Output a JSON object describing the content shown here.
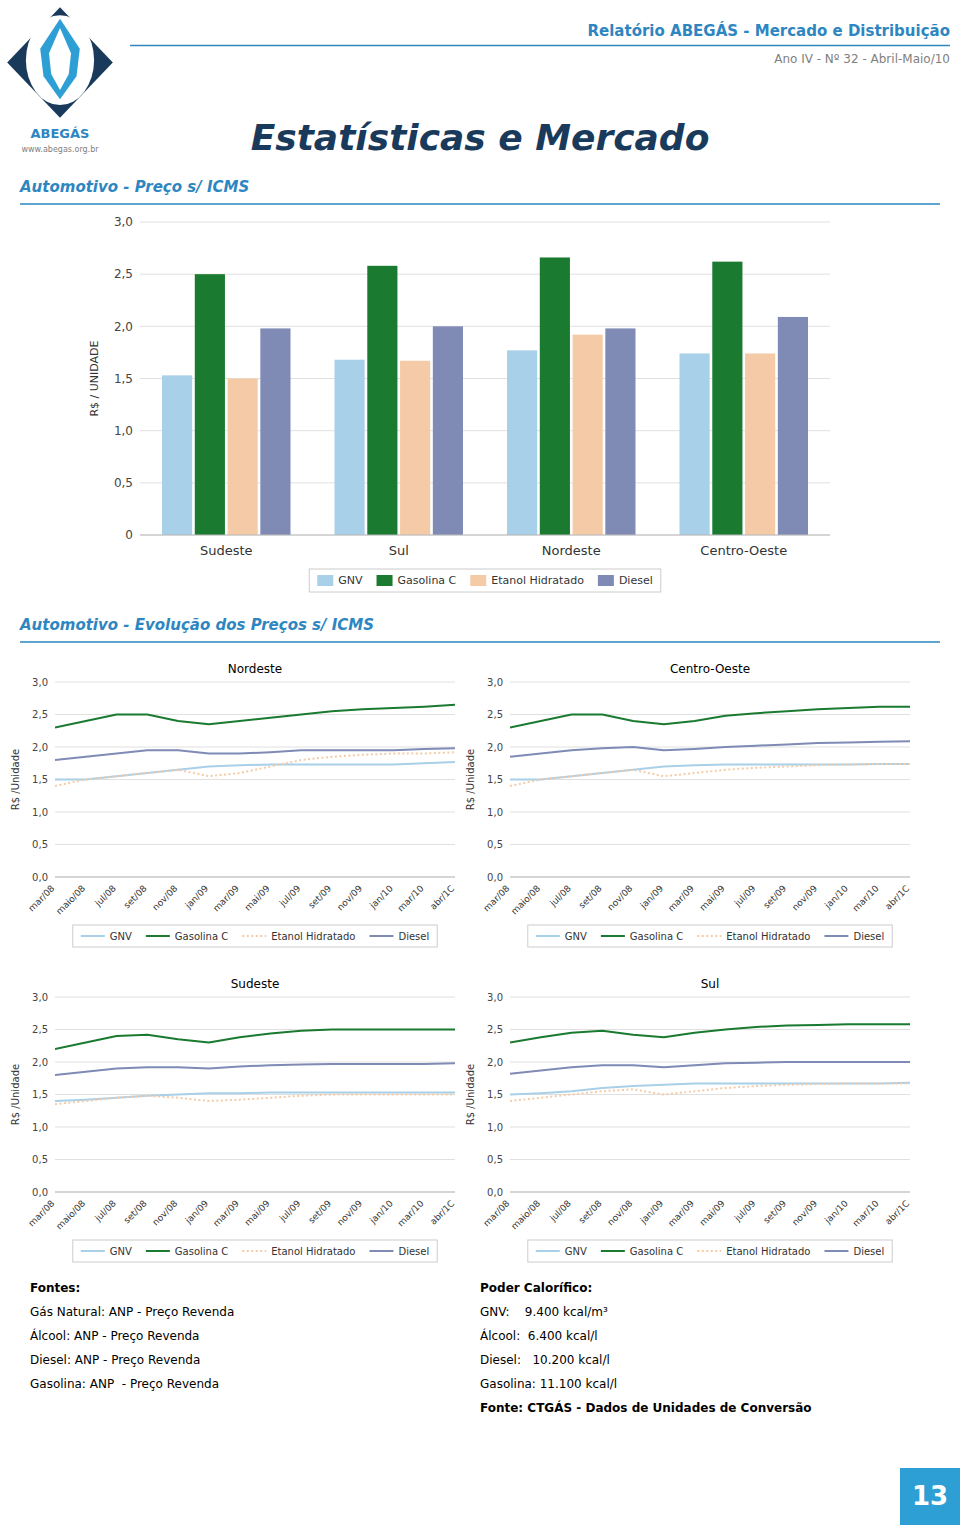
{
  "logo_text": "ABEGÁS",
  "logo_url": "www.abegas.org.br",
  "header_title": "Relatório ABEGÁS - Mercado e Distribuição",
  "header_subtitle": "Ano IV - Nº 32 - Abril-Maio/10",
  "page_title": "Estatísticas e Mercado",
  "sections": [
    "Automotivo - Preço s/ ICMS",
    "Automotivo - Evolução dos Preços s/ ICMS"
  ],
  "chart_data": [
    {
      "type": "bar",
      "categories": [
        "Sudeste",
        "Sul",
        "Nordeste",
        "Centro-Oeste"
      ],
      "series": [
        {
          "name": "GNV",
          "color": "#a8d0e8",
          "values": [
            1.53,
            1.68,
            1.77,
            1.74
          ]
        },
        {
          "name": "Gasolina C",
          "color": "#1a7a30",
          "values": [
            2.5,
            2.58,
            2.66,
            2.62
          ]
        },
        {
          "name": "Etanol Hidratado",
          "color": "#f5cba7",
          "values": [
            1.5,
            1.67,
            1.92,
            1.74
          ]
        },
        {
          "name": "Diesel",
          "color": "#7f8ab5",
          "values": [
            1.98,
            2.0,
            1.98,
            2.09
          ]
        }
      ],
      "ylim": [
        0,
        3
      ],
      "yticks": [
        0,
        {
          "value": 0.5,
          "label": "0,5"
        },
        {
          "value": 1.0,
          "label": "1,0"
        },
        {
          "value": 1.5,
          "label": "1,5"
        },
        {
          "value": 2.0,
          "label": "2,0"
        },
        {
          "value": 2.5,
          "label": "2,5"
        },
        {
          "value": 3.0,
          "label": "3,0"
        }
      ],
      "ylabel": "R$ / UNIDADE",
      "grid": true,
      "legend": "bottom"
    },
    {
      "type": "line",
      "title": "Nordeste",
      "categories": [
        "mar/08",
        "maio/08",
        "jul/08",
        "set/08",
        "nov/08",
        "jan/09",
        "mar/09",
        "mai/09",
        "jul/09",
        "set/09",
        "nov/09",
        "jan/10",
        "mar/10",
        "abr/1C"
      ],
      "series": [
        {
          "name": "GNV",
          "color": "#a8d0e8",
          "line_style": "solid",
          "values": [
            1.5,
            1.5,
            1.55,
            1.6,
            1.65,
            1.7,
            1.72,
            1.73,
            1.73,
            1.73,
            1.73,
            1.73,
            1.75,
            1.77
          ]
        },
        {
          "name": "Gasolina C",
          "color": "#1a7a30",
          "line_style": "solid",
          "values": [
            2.3,
            2.4,
            2.5,
            2.5,
            2.4,
            2.35,
            2.4,
            2.45,
            2.5,
            2.55,
            2.58,
            2.6,
            2.62,
            2.65
          ]
        },
        {
          "name": "Etanol Hidratado",
          "color": "#f5cba7",
          "line_style": "dotted",
          "values": [
            1.4,
            1.5,
            1.55,
            1.6,
            1.65,
            1.55,
            1.6,
            1.7,
            1.8,
            1.85,
            1.88,
            1.9,
            1.9,
            1.92
          ]
        },
        {
          "name": "Diesel",
          "color": "#7f8ab5",
          "line_style": "solid",
          "values": [
            1.8,
            1.85,
            1.9,
            1.95,
            1.95,
            1.9,
            1.9,
            1.92,
            1.95,
            1.95,
            1.95,
            1.95,
            1.97,
            1.98
          ]
        }
      ],
      "ylim": [
        0.0,
        3.0
      ],
      "yticks": [
        {
          "value": 0.0,
          "label": "0,0"
        },
        {
          "value": 0.5,
          "label": "0,5"
        },
        {
          "value": 1.0,
          "label": "1,0"
        },
        {
          "value": 1.5,
          "label": "1,5"
        },
        {
          "value": 2.0,
          "label": "2,0"
        },
        {
          "value": 2.5,
          "label": "2,5"
        },
        {
          "value": 3.0,
          "label": "3,0"
        }
      ],
      "ylabel": "R$ /Unidade",
      "grid": true,
      "legend": "bottom"
    },
    {
      "type": "line",
      "title": "Centro-Oeste",
      "categories": [
        "mar/08",
        "maio/08",
        "jul/08",
        "set/08",
        "nov/08",
        "jan/09",
        "mar/09",
        "mai/09",
        "jul/09",
        "set/09",
        "nov/09",
        "jan/10",
        "mar/10",
        "abr/1C"
      ],
      "series": [
        {
          "name": "GNV",
          "color": "#a8d0e8",
          "line_style": "solid",
          "values": [
            1.5,
            1.5,
            1.55,
            1.6,
            1.65,
            1.7,
            1.72,
            1.73,
            1.73,
            1.73,
            1.73,
            1.73,
            1.74,
            1.74
          ]
        },
        {
          "name": "Gasolina C",
          "color": "#1a7a30",
          "line_style": "solid",
          "values": [
            2.3,
            2.4,
            2.5,
            2.5,
            2.4,
            2.35,
            2.4,
            2.48,
            2.52,
            2.55,
            2.58,
            2.6,
            2.62,
            2.62
          ]
        },
        {
          "name": "Etanol Hidratado",
          "color": "#f5cba7",
          "line_style": "dotted",
          "values": [
            1.4,
            1.5,
            1.55,
            1.6,
            1.65,
            1.55,
            1.6,
            1.65,
            1.68,
            1.7,
            1.72,
            1.73,
            1.74,
            1.74
          ]
        },
        {
          "name": "Diesel",
          "color": "#7f8ab5",
          "line_style": "solid",
          "values": [
            1.85,
            1.9,
            1.95,
            1.98,
            2.0,
            1.95,
            1.97,
            2.0,
            2.02,
            2.04,
            2.06,
            2.07,
            2.08,
            2.09
          ]
        }
      ],
      "ylim": [
        0.0,
        3.0
      ],
      "yticks": [
        {
          "value": 0.0,
          "label": "0,0"
        },
        {
          "value": 0.5,
          "label": "0,5"
        },
        {
          "value": 1.0,
          "label": "1,0"
        },
        {
          "value": 1.5,
          "label": "1,5"
        },
        {
          "value": 2.0,
          "label": "2,0"
        },
        {
          "value": 2.5,
          "label": "2,5"
        },
        {
          "value": 3.0,
          "label": "3,0"
        }
      ],
      "ylabel": "R$ /Unidade",
      "grid": true,
      "legend": "bottom"
    },
    {
      "type": "line",
      "title": "Sudeste",
      "categories": [
        "mar/08",
        "maio/08",
        "jul/08",
        "set/08",
        "nov/08",
        "jan/09",
        "mar/09",
        "mai/09",
        "jul/09",
        "set/09",
        "nov/09",
        "jan/10",
        "mar/10",
        "abr/1C"
      ],
      "series": [
        {
          "name": "GNV",
          "color": "#a8d0e8",
          "line_style": "solid",
          "values": [
            1.4,
            1.42,
            1.45,
            1.48,
            1.5,
            1.52,
            1.52,
            1.53,
            1.53,
            1.53,
            1.53,
            1.53,
            1.53,
            1.53
          ]
        },
        {
          "name": "Gasolina C",
          "color": "#1a7a30",
          "line_style": "solid",
          "values": [
            2.2,
            2.3,
            2.4,
            2.42,
            2.35,
            2.3,
            2.38,
            2.44,
            2.48,
            2.5,
            2.5,
            2.5,
            2.5,
            2.5
          ]
        },
        {
          "name": "Etanol Hidratado",
          "color": "#f5cba7",
          "line_style": "dotted",
          "values": [
            1.35,
            1.4,
            1.45,
            1.48,
            1.45,
            1.4,
            1.42,
            1.45,
            1.48,
            1.5,
            1.5,
            1.5,
            1.5,
            1.5
          ]
        },
        {
          "name": "Diesel",
          "color": "#7f8ab5",
          "line_style": "solid",
          "values": [
            1.8,
            1.85,
            1.9,
            1.92,
            1.92,
            1.9,
            1.93,
            1.95,
            1.96,
            1.97,
            1.97,
            1.97,
            1.97,
            1.98
          ]
        }
      ],
      "ylim": [
        0.0,
        3.0
      ],
      "yticks": [
        {
          "value": 0.0,
          "label": "0,0"
        },
        {
          "value": 0.5,
          "label": "0,5"
        },
        {
          "value": 1.0,
          "label": "1,0"
        },
        {
          "value": 1.5,
          "label": "1,5"
        },
        {
          "value": 2.0,
          "label": "2,0"
        },
        {
          "value": 2.5,
          "label": "2,5"
        },
        {
          "value": 3.0,
          "label": "3,0"
        }
      ],
      "ylabel": "R$ /Unidade",
      "grid": true,
      "legend": "bottom"
    },
    {
      "type": "line",
      "title": "Sul",
      "categories": [
        "mar/08",
        "maio/08",
        "jul/08",
        "set/08",
        "nov/08",
        "jan/09",
        "mar/09",
        "mai/09",
        "jul/09",
        "set/09",
        "nov/09",
        "jan/10",
        "mar/10",
        "abr/1C"
      ],
      "series": [
        {
          "name": "GNV",
          "color": "#a8d0e8",
          "line_style": "solid",
          "values": [
            1.5,
            1.52,
            1.55,
            1.6,
            1.63,
            1.65,
            1.67,
            1.67,
            1.67,
            1.67,
            1.67,
            1.67,
            1.67,
            1.68
          ]
        },
        {
          "name": "Gasolina C",
          "color": "#1a7a30",
          "line_style": "solid",
          "values": [
            2.3,
            2.38,
            2.45,
            2.48,
            2.42,
            2.38,
            2.45,
            2.5,
            2.54,
            2.56,
            2.57,
            2.58,
            2.58,
            2.58
          ]
        },
        {
          "name": "Etanol Hidratado",
          "color": "#f5cba7",
          "line_style": "dotted",
          "values": [
            1.4,
            1.45,
            1.5,
            1.55,
            1.58,
            1.5,
            1.55,
            1.6,
            1.63,
            1.65,
            1.66,
            1.67,
            1.67,
            1.67
          ]
        },
        {
          "name": "Diesel",
          "color": "#7f8ab5",
          "line_style": "solid",
          "values": [
            1.82,
            1.87,
            1.92,
            1.95,
            1.95,
            1.92,
            1.95,
            1.98,
            1.99,
            2.0,
            2.0,
            2.0,
            2.0,
            2.0
          ]
        }
      ],
      "ylim": [
        0.0,
        3.0
      ],
      "yticks": [
        {
          "value": 0.0,
          "label": "0,0"
        },
        {
          "value": 0.5,
          "label": "0,5"
        },
        {
          "value": 1.0,
          "label": "1,0"
        },
        {
          "value": 1.5,
          "label": "1,5"
        },
        {
          "value": 2.0,
          "label": "2,0"
        },
        {
          "value": 2.5,
          "label": "2,5"
        },
        {
          "value": 3.0,
          "label": "3,0"
        }
      ],
      "ylabel": "R$ /Unidade",
      "grid": true,
      "legend": "bottom"
    }
  ],
  "footer_left": [
    {
      "text": "Fontes:",
      "bold": true
    },
    {
      "text": "Gás Natural: ANP - Preço Revenda",
      "bold": false
    },
    {
      "text": "Álcool: ANP - Preço Revenda",
      "bold": false
    },
    {
      "text": "Diesel: ANP - Preço Revenda",
      "bold": false
    },
    {
      "text": "Gasolina: ANP  - Preço Revenda",
      "bold": false
    }
  ],
  "footer_right": [
    {
      "text": "Poder Calorífico:",
      "bold": true
    },
    {
      "text": "GNV:    9.400 kcal/m³",
      "bold": false
    },
    {
      "text": "Álcool:  6.400 kcal/l",
      "bold": false
    },
    {
      "text": "Diesel:   10.200 kcal/l",
      "bold": false
    },
    {
      "text": "Gasolina: 11.100 kcal/l",
      "bold": false
    },
    {
      "text": "Fonte: CTGÁS - Dados de Unidades de Conversão",
      "bold": true
    }
  ],
  "page_number": "13"
}
